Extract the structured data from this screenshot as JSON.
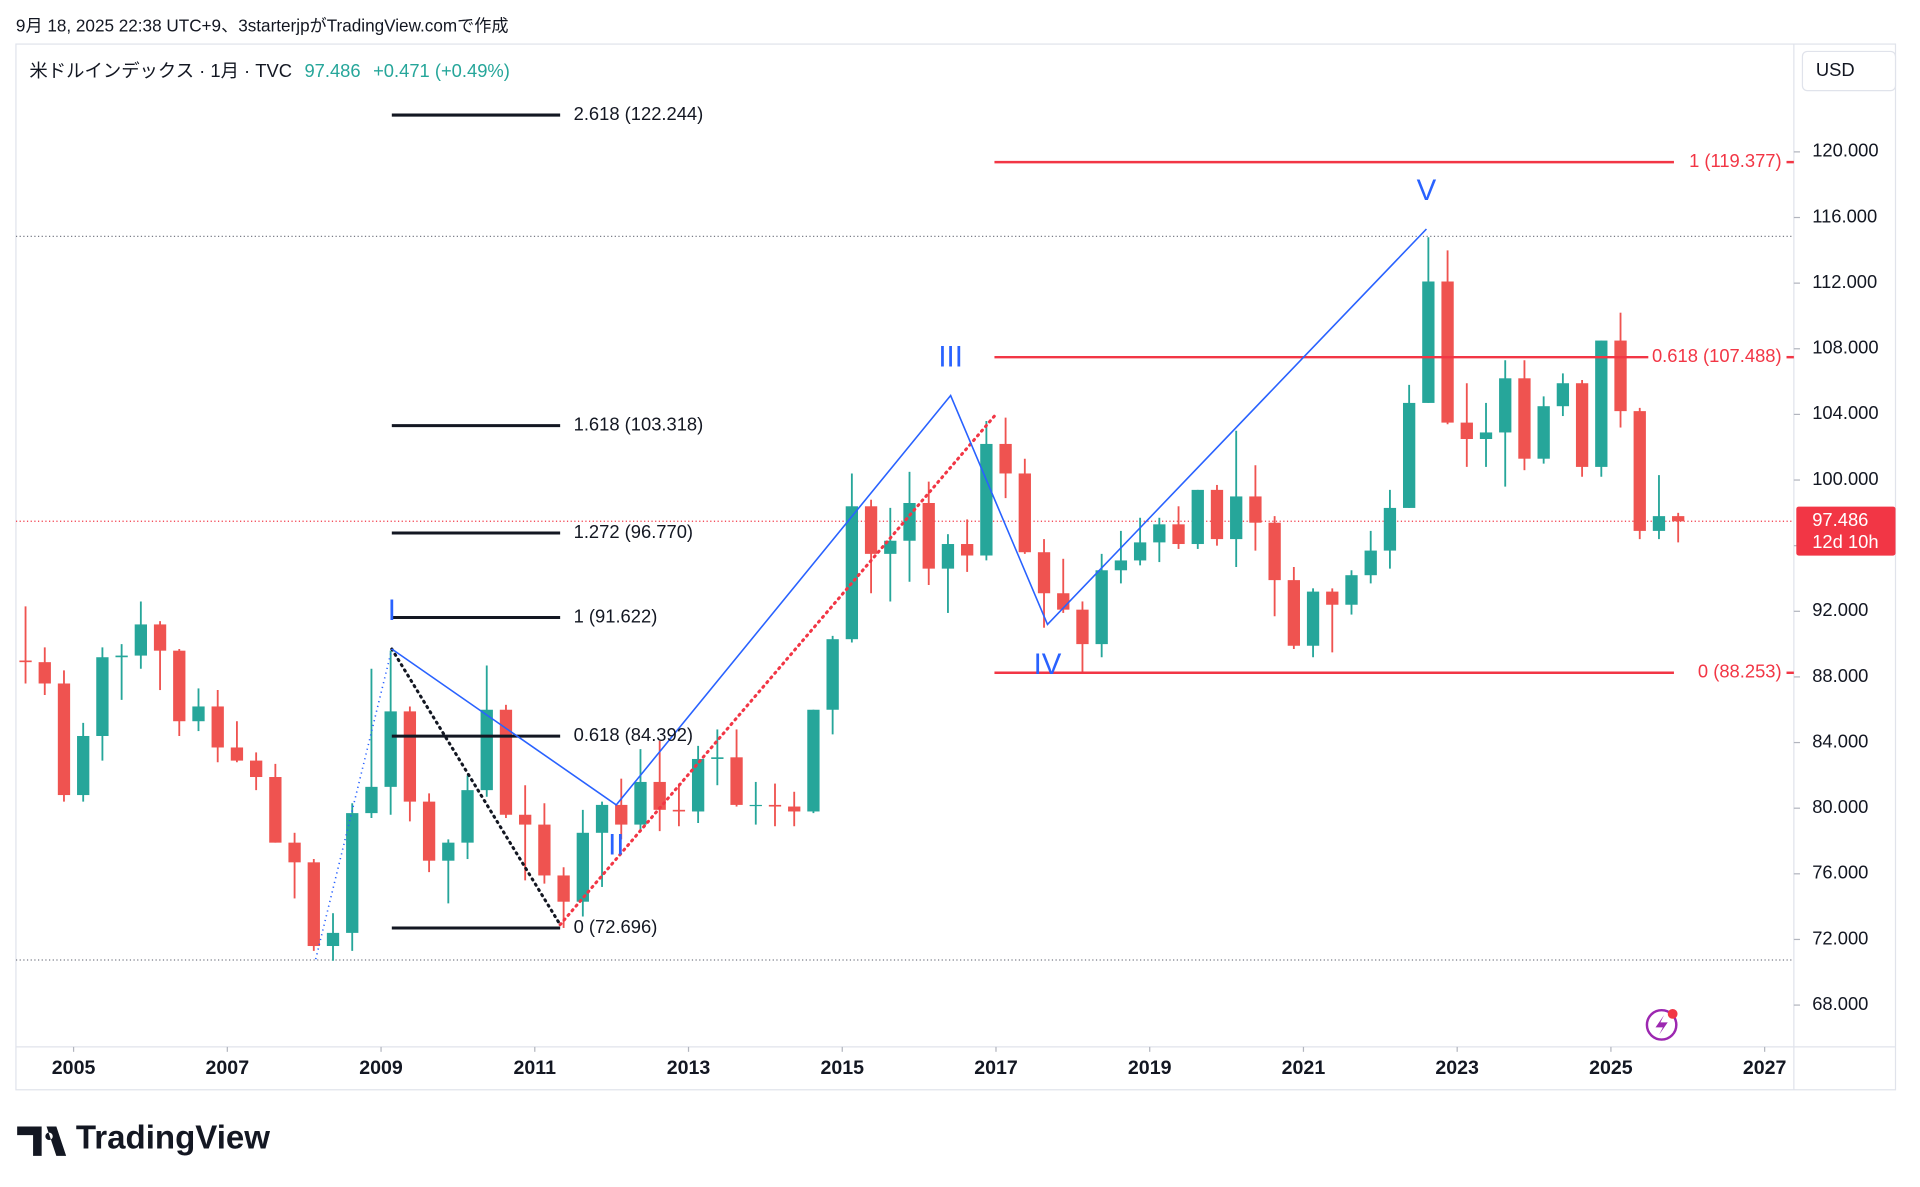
{
  "header": {
    "caption": "9月 18, 2025 22:38 UTC+9、3starterjpがTradingView.comで作成",
    "logo": "TradingView"
  },
  "chart_data": {
    "type": "candlestick",
    "symbol": "米ドルインデックス · 1月 · TVC",
    "last": 97.486,
    "change": "+0.471 (+0.49%)",
    "currency": "USD",
    "countdown": "12d 10h",
    "up_color": "#26a69a",
    "down_color": "#ef5350",
    "x": [
      2004.25,
      2004.5,
      2004.75,
      2005,
      2005.25,
      2005.5,
      2005.75,
      2006,
      2006.25,
      2006.5,
      2006.75,
      2007,
      2007.25,
      2007.5,
      2007.75,
      2008,
      2008.25,
      2008.5,
      2008.75,
      2009,
      2009.25,
      2009.5,
      2009.75,
      2010,
      2010.25,
      2010.5,
      2010.75,
      2011,
      2011.25,
      2011.5,
      2011.75,
      2012,
      2012.25,
      2012.5,
      2012.75,
      2013,
      2013.25,
      2013.5,
      2013.75,
      2014,
      2014.25,
      2014.5,
      2014.75,
      2015,
      2015.25,
      2015.5,
      2015.75,
      2016,
      2016.25,
      2016.5,
      2016.75,
      2017,
      2017.25,
      2017.5,
      2017.75,
      2018,
      2018.25,
      2018.5,
      2018.75,
      2019,
      2019.25,
      2019.5,
      2019.75,
      2020,
      2020.25,
      2020.5,
      2020.75,
      2021,
      2021.25,
      2021.5,
      2021.75,
      2022,
      2022.25,
      2022.5,
      2022.75,
      2023,
      2023.25,
      2023.5,
      2023.75,
      2024,
      2024.25,
      2024.5,
      2024.75,
      2025,
      2025.25,
      2025.5,
      2025.75
    ],
    "open": [
      89.0,
      88.9,
      87.6,
      80.8,
      84.4,
      89.2,
      89.3,
      91.2,
      89.6,
      85.3,
      86.2,
      83.7,
      82.9,
      81.9,
      77.9,
      76.7,
      71.6,
      72.4,
      79.7,
      81.3,
      85.9,
      80.4,
      76.8,
      77.9,
      81.1,
      86.0,
      79.6,
      79.0,
      75.9,
      74.3,
      78.5,
      80.2,
      79.0,
      81.6,
      79.9,
      79.8,
      83.0,
      83.1,
      80.2,
      80.2,
      80.1,
      79.8,
      86.0,
      90.3,
      98.4,
      95.5,
      96.3,
      98.6,
      94.6,
      96.1,
      95.4,
      102.2,
      100.4,
      95.6,
      93.1,
      92.1,
      90.0,
      94.5,
      95.1,
      96.2,
      97.3,
      96.1,
      99.4,
      96.4,
      99.0,
      97.4,
      93.9,
      89.9,
      93.2,
      92.4,
      94.2,
      95.7,
      98.3,
      104.7,
      112.1,
      103.5,
      102.5,
      102.9,
      106.2,
      101.3,
      104.5,
      105.9,
      100.8,
      108.5,
      104.2,
      96.9,
      97.8
    ],
    "high": [
      92.3,
      89.8,
      88.4,
      85.2,
      89.8,
      90.0,
      92.6,
      91.4,
      89.7,
      87.3,
      87.2,
      85.3,
      83.4,
      82.7,
      78.5,
      76.9,
      73.6,
      80.3,
      88.5,
      89.6,
      86.2,
      80.9,
      78.1,
      82.0,
      88.7,
      86.3,
      81.4,
      80.3,
      76.4,
      79.9,
      80.4,
      81.8,
      83.6,
      84.1,
      81.5,
      83.8,
      84.8,
      84.8,
      81.6,
      81.5,
      81.0,
      86.0,
      90.5,
      100.4,
      98.8,
      98.3,
      100.5,
      99.9,
      96.7,
      97.6,
      103.6,
      103.8,
      101.3,
      96.4,
      95.2,
      92.6,
      95.5,
      96.9,
      97.7,
      97.7,
      98.4,
      99.4,
      99.7,
      103.0,
      100.9,
      97.8,
      94.7,
      93.4,
      93.4,
      94.5,
      96.9,
      99.4,
      105.8,
      114.8,
      114.0,
      105.9,
      104.7,
      107.3,
      107.3,
      105.1,
      106.5,
      106.1,
      108.5,
      110.2,
      104.4,
      100.3,
      98.0
    ],
    "low": [
      87.6,
      86.9,
      80.4,
      80.4,
      82.9,
      86.6,
      88.5,
      87.2,
      84.4,
      84.7,
      82.8,
      82.8,
      81.1,
      77.9,
      74.5,
      71.3,
      70.7,
      71.3,
      79.4,
      79.6,
      79.2,
      76.1,
      74.2,
      76.9,
      80.7,
      79.4,
      75.6,
      75.4,
      72.7,
      73.4,
      75.2,
      78.1,
      78.6,
      78.6,
      78.9,
      79.1,
      81.4,
      80.1,
      79.0,
      78.9,
      78.9,
      79.7,
      84.5,
      90.1,
      93.1,
      92.6,
      93.8,
      93.6,
      91.9,
      94.4,
      95.1,
      98.9,
      95.5,
      91.0,
      91.9,
      88.3,
      89.2,
      93.7,
      94.8,
      95.0,
      95.8,
      95.8,
      96.0,
      94.7,
      95.7,
      91.7,
      89.7,
      89.2,
      89.5,
      91.8,
      93.7,
      94.6,
      98.3,
      104.7,
      103.4,
      100.8,
      100.8,
      99.6,
      100.6,
      101.0,
      103.9,
      100.2,
      100.2,
      103.2,
      96.4,
      96.4,
      96.2
    ],
    "close": [
      88.9,
      87.6,
      80.8,
      84.4,
      89.2,
      89.3,
      91.2,
      89.6,
      85.3,
      86.2,
      83.7,
      82.9,
      81.9,
      77.9,
      76.7,
      71.6,
      72.4,
      79.7,
      81.3,
      85.9,
      80.4,
      76.8,
      77.9,
      81.1,
      86.0,
      79.6,
      79.0,
      75.9,
      74.3,
      78.5,
      80.2,
      79.0,
      81.6,
      79.9,
      79.8,
      83.0,
      83.1,
      80.2,
      80.2,
      80.1,
      79.8,
      86.0,
      90.3,
      98.4,
      95.5,
      96.3,
      98.6,
      94.6,
      96.1,
      95.4,
      102.2,
      100.4,
      95.6,
      93.1,
      92.1,
      90.0,
      94.5,
      95.1,
      96.2,
      97.3,
      96.1,
      99.4,
      96.4,
      99.0,
      97.4,
      93.9,
      89.9,
      93.2,
      92.4,
      94.2,
      95.7,
      98.3,
      104.7,
      112.1,
      103.5,
      102.5,
      102.9,
      106.2,
      101.3,
      104.5,
      105.9,
      100.8,
      108.5,
      104.2,
      96.9,
      97.8,
      97.486
    ],
    "xlim": [
      2004.25,
      2027.38
    ],
    "ylim": [
      65.45,
      126.57
    ],
    "xticks": [
      2005,
      2007,
      2009,
      2011,
      2013,
      2015,
      2017,
      2019,
      2021,
      2023,
      2025,
      2027
    ],
    "yticks": [
      {
        "value": 68,
        "label": "68.000"
      },
      {
        "value": 72,
        "label": "72.000"
      },
      {
        "value": 76,
        "label": "76.000"
      },
      {
        "value": 80,
        "label": "80.000"
      },
      {
        "value": 84,
        "label": "84.000"
      },
      {
        "value": 88,
        "label": "88.000"
      },
      {
        "value": 92,
        "label": "92.000"
      },
      {
        "value": 96,
        "label": "96.000"
      },
      {
        "value": 100,
        "label": "100.000"
      },
      {
        "value": 104,
        "label": "104.000"
      },
      {
        "value": 108,
        "label": "108.000"
      },
      {
        "value": 112,
        "label": "112.000"
      },
      {
        "value": 116,
        "label": "116.000"
      },
      {
        "value": 120,
        "label": "120.000"
      }
    ],
    "extreme_lines": [
      114.85,
      70.75
    ],
    "fib_left": {
      "color": "#131722",
      "x": [
        2009.14,
        2011.33
      ],
      "levels": [
        {
          "value": 122.244,
          "label": "2.618 (122.244)"
        },
        {
          "value": 103.318,
          "label": "1.618 (103.318)"
        },
        {
          "value": 96.77,
          "label": "1.272 (96.770)"
        },
        {
          "value": 91.622,
          "label": "1 (91.622)"
        },
        {
          "value": 84.392,
          "label": "0.618 (84.392)"
        },
        {
          "value": 72.696,
          "label": "0 (72.696)"
        }
      ]
    },
    "fib_right": {
      "color": "#f23645",
      "x": [
        2016.98,
        2025.82
      ],
      "levels": [
        {
          "value": 119.377,
          "label": "1 (119.377)"
        },
        {
          "value": 107.488,
          "label": "0.618 (107.488)"
        },
        {
          "value": 88.253,
          "label": "0 (88.253)"
        }
      ]
    },
    "wave_color": "#2962ff",
    "wave_line": {
      "x": [
        2009.14,
        2012.06,
        2016.41,
        2017.67,
        2022.6
      ],
      "y": [
        89.7,
        80.2,
        105.15,
        91.2,
        115.3
      ]
    },
    "wave_lead": {
      "x": [
        2008.15,
        2009.14
      ],
      "y": [
        70.8,
        89.7
      ]
    },
    "wave_labels": [
      "I",
      "II",
      "III",
      "IV",
      "V"
    ],
    "extension_lines": [
      {
        "color": "#131722",
        "x": [
          2009.14,
          2011.33
        ],
        "y": [
          89.7,
          72.9
        ]
      },
      {
        "color": "#f23645",
        "x": [
          2011.33,
          2016.98
        ],
        "y": [
          72.9,
          103.9
        ]
      }
    ]
  }
}
